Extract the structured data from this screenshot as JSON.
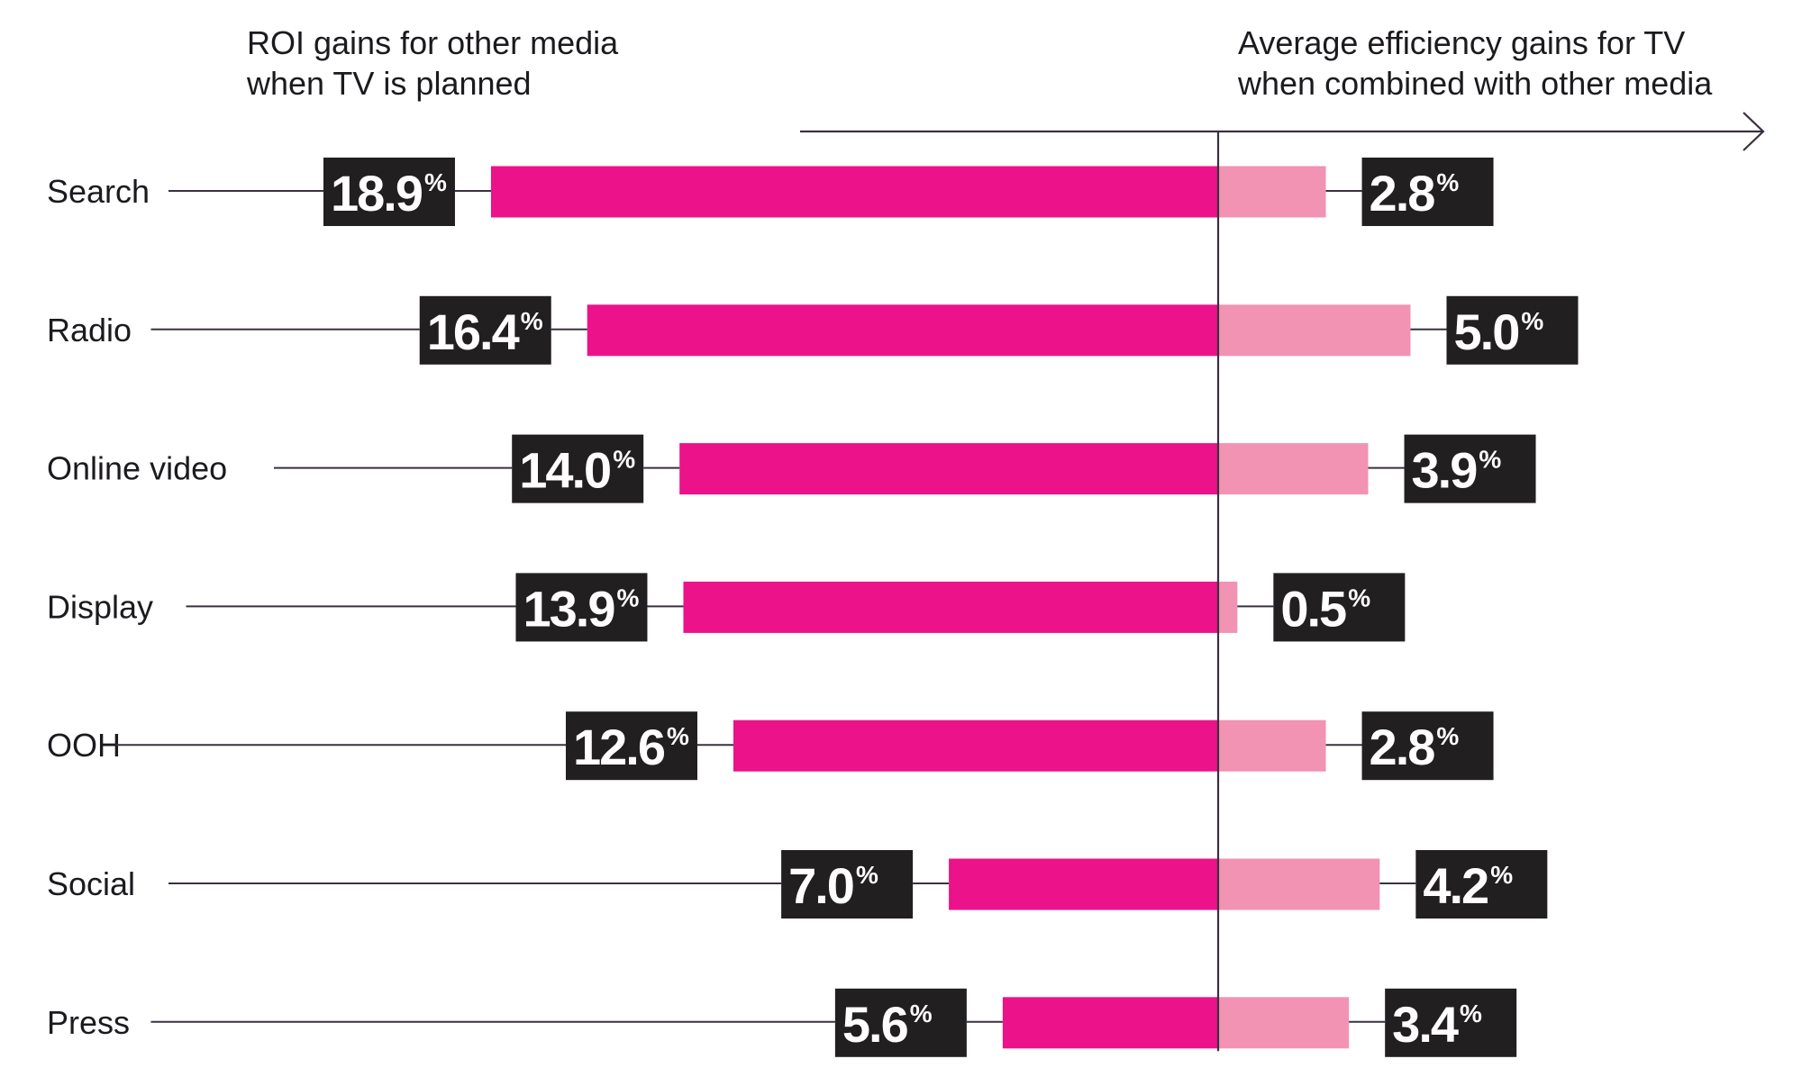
{
  "chart_data": {
    "type": "bar",
    "orientation": "horizontal-diverging",
    "left_header": [
      "ROI gains for other media",
      "when TV is planned"
    ],
    "right_header": [
      "Average efficiency gains for TV",
      "when combined with other media"
    ],
    "categories": [
      "Search",
      "Radio",
      "Online video",
      "Display",
      "OOH",
      "Social",
      "Press"
    ],
    "series": [
      {
        "name": "ROI gains for other media when TV is planned",
        "side": "left",
        "color": "#ec1289",
        "values": [
          18.9,
          16.4,
          14.0,
          13.9,
          12.6,
          7.0,
          5.6
        ]
      },
      {
        "name": "Average efficiency gains for TV when combined with other media",
        "side": "right",
        "color": "#f293b3",
        "values": [
          2.8,
          5.0,
          3.9,
          0.5,
          2.8,
          4.2,
          3.4
        ]
      }
    ],
    "value_suffix": "%",
    "label_box_color": "#221f20",
    "axis_color": "#3a3040"
  }
}
